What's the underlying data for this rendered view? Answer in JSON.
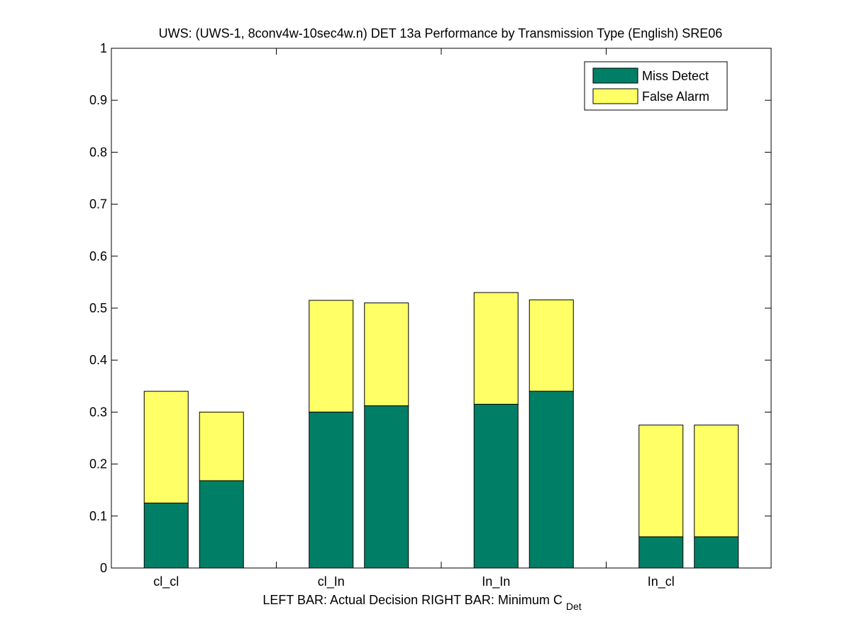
{
  "chart_data": {
    "type": "bar",
    "stacked": true,
    "title": "UWS: (UWS-1, 8conv4w-10sec4w.n) DET 13a Performance by Transmission Type (English) SRE06",
    "xlabel": {
      "left": "LEFT BAR: Actual Decision",
      "right_prefix": "RIGHT BAR: Minimum C",
      "right_subscript": "Det"
    },
    "ylabel": "",
    "ylim": [
      0,
      1
    ],
    "yticks": [
      "0",
      "0.1",
      "0.2",
      "0.3",
      "0.4",
      "0.5",
      "0.6",
      "0.7",
      "0.8",
      "0.9",
      "1"
    ],
    "grid": false,
    "legend_position": "top-right",
    "categories": [
      "cl_cl",
      "cl_In",
      "In_In",
      "In_cl"
    ],
    "bar_groups": [
      {
        "category": "cl_cl",
        "actual": {
          "miss": 0.125,
          "total": 0.34
        },
        "minimum": {
          "miss": 0.168,
          "total": 0.3
        }
      },
      {
        "category": "cl_In",
        "actual": {
          "miss": 0.3,
          "total": 0.515
        },
        "minimum": {
          "miss": 0.312,
          "total": 0.51
        }
      },
      {
        "category": "In_In",
        "actual": {
          "miss": 0.315,
          "total": 0.53
        },
        "minimum": {
          "miss": 0.34,
          "total": 0.516
        }
      },
      {
        "category": "In_cl",
        "actual": {
          "miss": 0.06,
          "total": 0.275
        },
        "minimum": {
          "miss": 0.06,
          "total": 0.275
        }
      }
    ],
    "series": [
      {
        "name": "Miss Detect",
        "color": "#007f66"
      },
      {
        "name": "False Alarm",
        "color": "#ffff66"
      }
    ]
  }
}
